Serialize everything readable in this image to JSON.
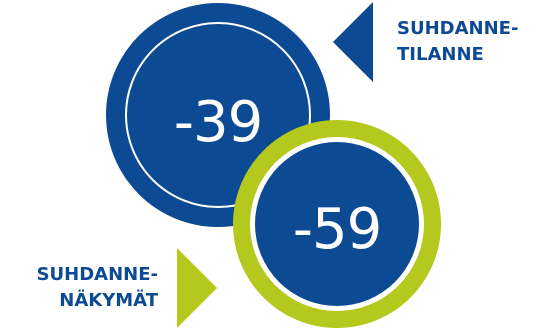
{
  "colors": {
    "primary_blue": "#0d4a94",
    "accent_green": "#b5c81e",
    "ring_white": "#ffffff"
  },
  "current_situation": {
    "value": "-39",
    "label_line1": "SUHDANNE-",
    "label_line2": "TILANNE",
    "arrow_icon": "triangle-left-icon"
  },
  "outlook": {
    "value": "-59",
    "label_line1": "SUHDANNE-",
    "label_line2": "NÄKYMÄT",
    "arrow_icon": "triangle-right-icon"
  }
}
